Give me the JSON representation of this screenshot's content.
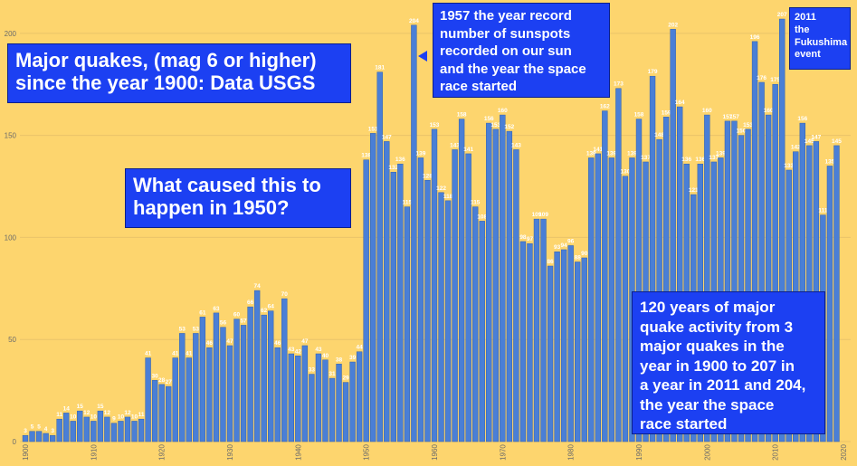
{
  "chart_data": {
    "type": "bar",
    "color": "#4a7fd6",
    "grid": true,
    "x": [
      1900,
      1901,
      1902,
      1903,
      1904,
      1905,
      1906,
      1907,
      1908,
      1909,
      1910,
      1911,
      1912,
      1913,
      1914,
      1915,
      1916,
      1917,
      1918,
      1919,
      1920,
      1921,
      1922,
      1923,
      1924,
      1925,
      1926,
      1927,
      1928,
      1929,
      1930,
      1931,
      1932,
      1933,
      1934,
      1935,
      1936,
      1937,
      1938,
      1939,
      1940,
      1941,
      1942,
      1943,
      1944,
      1945,
      1946,
      1947,
      1948,
      1949,
      1950,
      1951,
      1952,
      1953,
      1954,
      1955,
      1956,
      1957,
      1958,
      1959,
      1960,
      1961,
      1962,
      1963,
      1964,
      1965,
      1966,
      1967,
      1968,
      1969,
      1970,
      1971,
      1972,
      1973,
      1974,
      1975,
      1976,
      1977,
      1978,
      1979,
      1980,
      1981,
      1982,
      1983,
      1984,
      1985,
      1986,
      1987,
      1988,
      1989,
      1990,
      1991,
      1992,
      1993,
      1994,
      1995,
      1996,
      1997,
      1998,
      1999,
      2000,
      2001,
      2002,
      2003,
      2004,
      2005,
      2006,
      2007,
      2008,
      2009,
      2010,
      2011,
      2012,
      2013,
      2014,
      2015,
      2016,
      2017,
      2018,
      2019
    ],
    "values": [
      3,
      5,
      5,
      4,
      3,
      11,
      14,
      10,
      15,
      12,
      10,
      15,
      12,
      9,
      10,
      12,
      10,
      11,
      41,
      30,
      28,
      27,
      41,
      53,
      41,
      53,
      61,
      46,
      63,
      56,
      47,
      60,
      57,
      66,
      74,
      62,
      64,
      46,
      70,
      43,
      42,
      47,
      33,
      43,
      40,
      31,
      38,
      29,
      39,
      44,
      138,
      151,
      181,
      147,
      132,
      136,
      115,
      204,
      139,
      128,
      153,
      122,
      118,
      143,
      158,
      141,
      115,
      108,
      156,
      153,
      160,
      152,
      143,
      98,
      97,
      109,
      109,
      86,
      93,
      94,
      96,
      88,
      90,
      139,
      141,
      162,
      139,
      173,
      130,
      139,
      158,
      137,
      179,
      148,
      159,
      202,
      164,
      136,
      121,
      136,
      160,
      137,
      139,
      157,
      157,
      150,
      153,
      196,
      176,
      160,
      175,
      207,
      133,
      142,
      156,
      145,
      147,
      111,
      135,
      145
    ],
    "xlim": [
      1900,
      2020
    ],
    "xticks": [
      1900,
      1910,
      1920,
      1930,
      1940,
      1950,
      1960,
      1970,
      1980,
      1990,
      2000,
      2010,
      2020
    ],
    "ylim": [
      0,
      215
    ],
    "yticks": [
      0,
      50,
      100,
      150,
      200
    ],
    "annotations": [
      {
        "lines": [
          "Major quakes, (mag 6 or higher)",
          "since the year 1900: Data USGS"
        ]
      },
      {
        "lines": [
          "What caused this to",
          "happen in 1950?"
        ]
      },
      {
        "lines": [
          "1957 the year record",
          "number of sunspots",
          "recorded on our sun",
          "and the year the space",
          "race started"
        ]
      },
      {
        "lines": [
          "2011",
          "the",
          "Fukushima",
          "event"
        ]
      },
      {
        "lines": [
          "120 years of major",
          "quake activity from 3",
          "major quakes in the",
          "year in 1900 to 207 in",
          "a year in 2011 and 204,",
          "the year the space",
          "race started"
        ]
      }
    ]
  }
}
